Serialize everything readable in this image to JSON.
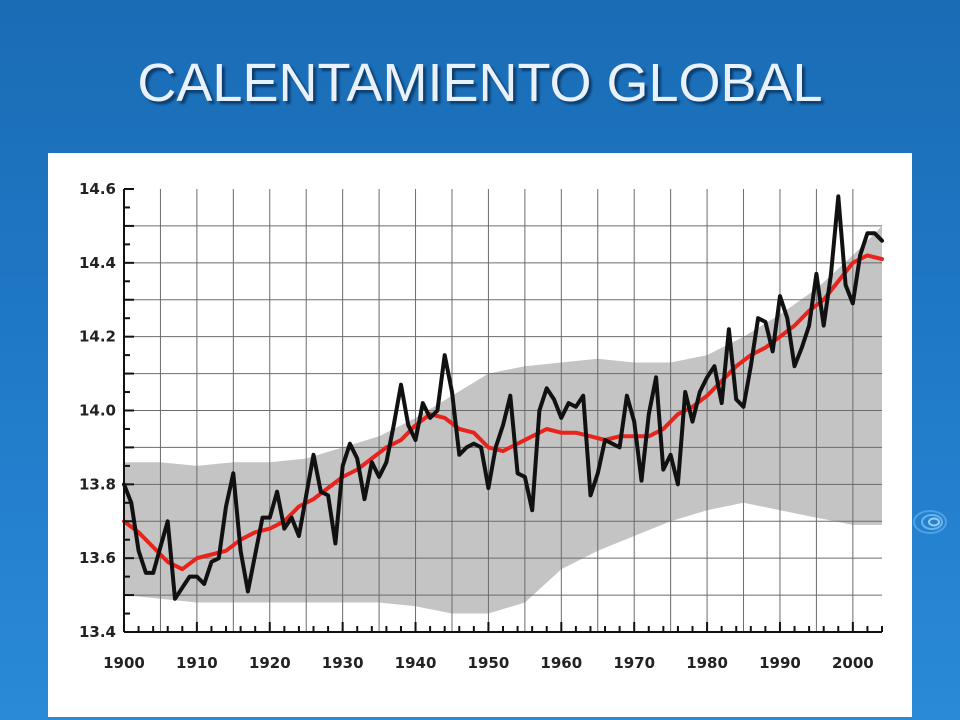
{
  "slide": {
    "title": "CALENTAMIENTO GLOBAL"
  },
  "colors": {
    "background": "#1f78c6",
    "title": "#eaf1fa",
    "band": "#c4c4c4",
    "observed_line": "#111111",
    "smoothed_line": "#e8231c"
  },
  "icons": [
    "swirl-decoration-icon"
  ],
  "chart_data": {
    "type": "line",
    "title": "",
    "xlabel": "",
    "ylabel": "",
    "xlim": [
      1900,
      2004
    ],
    "ylim": [
      13.4,
      14.6
    ],
    "grid": true,
    "x_ticks": [
      "1900",
      "1910",
      "1920",
      "1930",
      "1940",
      "1950",
      "1960",
      "1970",
      "1980",
      "1990",
      "2000"
    ],
    "y_ticks": [
      "14.6",
      "14.4",
      "14.2",
      "14.0",
      "13.8",
      "13.6",
      "13.4"
    ],
    "series": [
      {
        "style": "black",
        "x": [
          1900,
          1901,
          1902,
          1903,
          1904,
          1905,
          1906,
          1907,
          1908,
          1909,
          1910,
          1911,
          1912,
          1913,
          1914,
          1915,
          1916,
          1917,
          1918,
          1919,
          1920,
          1921,
          1922,
          1923,
          1924,
          1925,
          1926,
          1927,
          1928,
          1929,
          1930,
          1931,
          1932,
          1933,
          1934,
          1935,
          1936,
          1937,
          1938,
          1939,
          1940,
          1941,
          1942,
          1943,
          1944,
          1945,
          1946,
          1947,
          1948,
          1949,
          1950,
          1951,
          1952,
          1953,
          1954,
          1955,
          1956,
          1957,
          1958,
          1959,
          1960,
          1961,
          1962,
          1963,
          1964,
          1965,
          1966,
          1967,
          1968,
          1969,
          1970,
          1971,
          1972,
          1973,
          1974,
          1975,
          1976,
          1977,
          1978,
          1979,
          1980,
          1981,
          1982,
          1983,
          1984,
          1985,
          1986,
          1987,
          1988,
          1989,
          1990,
          1991,
          1992,
          1993,
          1994,
          1995,
          1996,
          1997,
          1998,
          1999,
          2000,
          2001,
          2002,
          2003,
          2004
        ],
        "y": [
          13.8,
          13.75,
          13.62,
          13.56,
          13.56,
          13.63,
          13.7,
          13.49,
          13.52,
          13.55,
          13.55,
          13.53,
          13.59,
          13.6,
          13.74,
          13.83,
          13.62,
          13.51,
          13.61,
          13.71,
          13.71,
          13.78,
          13.68,
          13.71,
          13.66,
          13.77,
          13.88,
          13.78,
          13.77,
          13.64,
          13.85,
          13.91,
          13.87,
          13.76,
          13.86,
          13.82,
          13.86,
          13.96,
          14.07,
          13.96,
          13.92,
          14.02,
          13.98,
          14.0,
          14.15,
          14.05,
          13.88,
          13.9,
          13.91,
          13.9,
          13.79,
          13.9,
          13.96,
          14.04,
          13.83,
          13.82,
          13.73,
          14.0,
          14.06,
          14.03,
          13.98,
          14.02,
          14.01,
          14.04,
          13.77,
          13.83,
          13.92,
          13.91,
          13.9,
          14.04,
          13.97,
          13.81,
          13.99,
          14.09,
          13.84,
          13.88,
          13.8,
          14.05,
          13.97,
          14.05,
          14.09,
          14.12,
          14.02,
          14.22,
          14.03,
          14.01,
          14.12,
          14.25,
          14.24,
          14.16,
          14.31,
          14.25,
          14.12,
          14.17,
          14.23,
          14.37,
          14.23,
          14.37,
          14.58,
          14.34,
          14.29,
          14.42,
          14.48,
          14.48,
          14.46
        ]
      },
      {
        "style": "red",
        "x": [
          1900,
          1902,
          1904,
          1906,
          1908,
          1910,
          1912,
          1914,
          1916,
          1918,
          1920,
          1922,
          1924,
          1926,
          1928,
          1930,
          1932,
          1934,
          1936,
          1938,
          1940,
          1942,
          1944,
          1946,
          1948,
          1950,
          1952,
          1954,
          1956,
          1958,
          1960,
          1962,
          1964,
          1966,
          1968,
          1970,
          1972,
          1974,
          1976,
          1978,
          1980,
          1982,
          1984,
          1986,
          1988,
          1990,
          1992,
          1994,
          1996,
          1998,
          2000,
          2002,
          2004
        ],
        "y": [
          13.7,
          13.67,
          13.63,
          13.59,
          13.57,
          13.6,
          13.61,
          13.62,
          13.65,
          13.67,
          13.68,
          13.7,
          13.74,
          13.76,
          13.79,
          13.82,
          13.84,
          13.87,
          13.9,
          13.92,
          13.96,
          13.99,
          13.98,
          13.95,
          13.94,
          13.9,
          13.89,
          13.91,
          13.93,
          13.95,
          13.94,
          13.94,
          13.93,
          13.92,
          13.93,
          13.93,
          13.93,
          13.95,
          13.99,
          14.01,
          14.04,
          14.08,
          14.12,
          14.15,
          14.17,
          14.2,
          14.23,
          14.27,
          14.3,
          14.35,
          14.4,
          14.42,
          14.41
        ]
      }
    ],
    "band": {
      "x": [
        1900,
        1905,
        1910,
        1915,
        1920,
        1925,
        1930,
        1935,
        1940,
        1945,
        1950,
        1955,
        1960,
        1965,
        1970,
        1975,
        1980,
        1985,
        1990,
        1995,
        2000,
        2004
      ],
      "upper": [
        13.86,
        13.86,
        13.85,
        13.86,
        13.86,
        13.87,
        13.9,
        13.93,
        13.98,
        14.04,
        14.1,
        14.12,
        14.13,
        14.14,
        14.13,
        14.13,
        14.15,
        14.2,
        14.26,
        14.33,
        14.42,
        14.5
      ],
      "lower": [
        13.5,
        13.49,
        13.48,
        13.48,
        13.48,
        13.48,
        13.48,
        13.48,
        13.47,
        13.45,
        13.45,
        13.48,
        13.57,
        13.62,
        13.66,
        13.7,
        13.73,
        13.75,
        13.73,
        13.71,
        13.69,
        13.69
      ]
    }
  }
}
